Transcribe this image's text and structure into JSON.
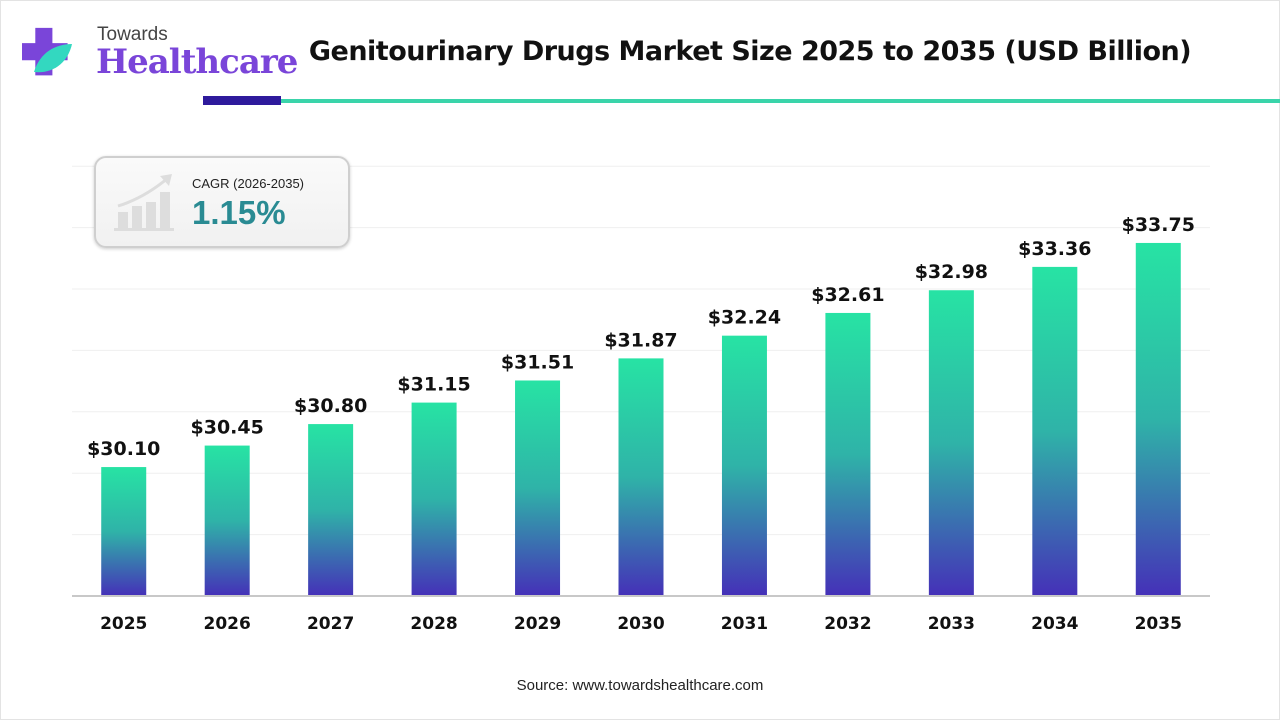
{
  "logo": {
    "top": "Towards",
    "main": "Healthcare"
  },
  "colors": {
    "bar_top": "#27e3a4",
    "bar_bottom": "#4530b8",
    "accent_dark": "#2e1a9c",
    "accent_light": "#3ad4aa",
    "cagr_value": "#2a8b93"
  },
  "cagr": {
    "label": "CAGR (2026-2035)",
    "value": "1.15%",
    "icon": "growth-chart-icon"
  },
  "source": "Source: www.towardshealthcare.com",
  "chart_data": {
    "type": "bar",
    "title": "Genitourinary Drugs Market Size 2025 to 2035 (USD Billion)",
    "categories": [
      "2025",
      "2026",
      "2027",
      "2028",
      "2029",
      "2030",
      "2031",
      "2032",
      "2033",
      "2034",
      "2035"
    ],
    "values": [
      30.1,
      30.45,
      30.8,
      31.15,
      31.51,
      31.87,
      32.24,
      32.61,
      32.98,
      33.36,
      33.75
    ],
    "data_labels": [
      "$30.10",
      "$30.45",
      "$30.80",
      "$31.15",
      "$31.51",
      "$31.87",
      "$32.24",
      "$32.61",
      "$32.98",
      "$33.36",
      "$33.75"
    ],
    "xlabel": "",
    "ylabel": "",
    "ylim": [
      28,
      35
    ],
    "grid": true
  }
}
